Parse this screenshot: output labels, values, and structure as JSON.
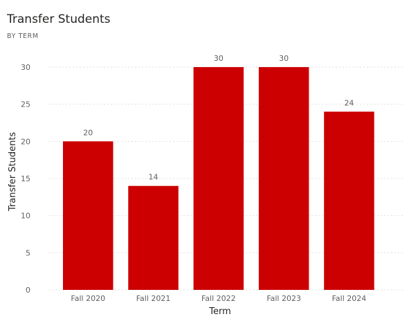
{
  "visual": {
    "title": "Transfer Students",
    "subtitle": "BY TERM"
  },
  "colors": {
    "bar": "#cc0000",
    "grid": "#e1dfdd",
    "text": "#605e5c"
  },
  "chart_data": {
    "type": "bar",
    "categories": [
      "Fall 2020",
      "Fall 2021",
      "Fall 2022",
      "Fall 2023",
      "Fall 2024"
    ],
    "values": [
      20,
      14,
      30,
      30,
      24
    ],
    "data_labels": [
      "20",
      "14",
      "30",
      "30",
      "24"
    ],
    "xlabel": "Term",
    "ylabel": "Transfer Students",
    "ylim": [
      0,
      30
    ],
    "yticks": [
      0,
      5,
      10,
      15,
      20,
      25,
      30
    ],
    "grid": true,
    "legend": "none"
  }
}
